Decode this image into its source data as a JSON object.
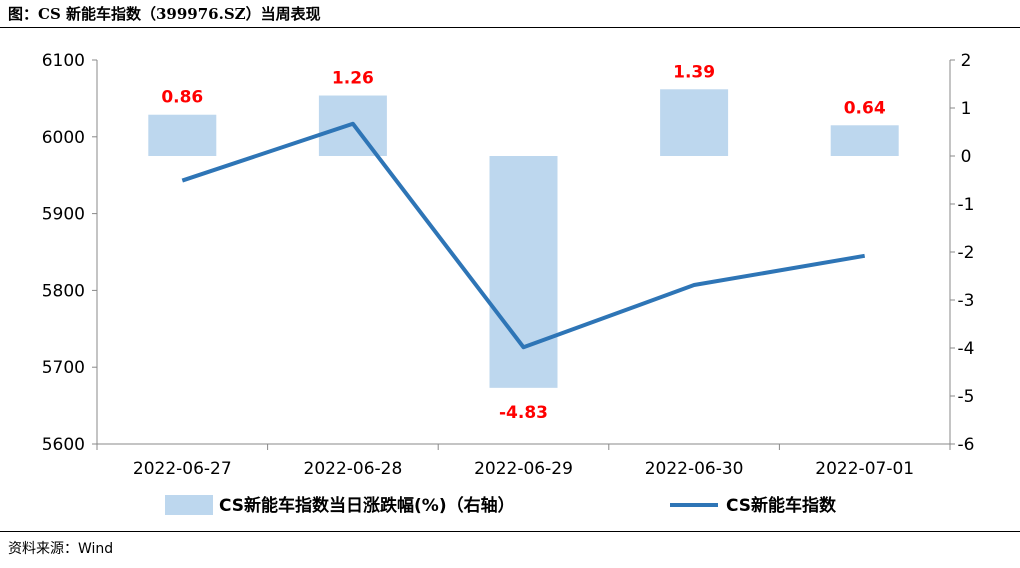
{
  "title": "图：CS 新能车指数（399976.SZ）当周表现",
  "source": "资料来源：Wind",
  "colors": {
    "bar": "#bdd7ee",
    "line": "#2e75b6",
    "label": "#ff0000"
  },
  "chart_data": {
    "type": "bar+line",
    "categories": [
      "2022-06-27",
      "2022-06-28",
      "2022-06-29",
      "2022-06-30",
      "2022-07-01"
    ],
    "bar_series": {
      "name": "CS新能车指数当日涨跌幅(%)（右轴）",
      "axis": "right",
      "values": [
        0.86,
        1.26,
        -4.83,
        1.39,
        0.64
      ],
      "labels": [
        "0.86",
        "1.26",
        "-4.83",
        "1.39",
        "0.64"
      ]
    },
    "line_series": {
      "name": "CS新能车指数",
      "axis": "left",
      "values": [
        5943,
        6017,
        5726,
        5807,
        5845
      ]
    },
    "left_axis": {
      "min": 5600,
      "max": 6100,
      "ticks": [
        "6100",
        "6000",
        "5900",
        "5800",
        "5700",
        "5600"
      ]
    },
    "right_axis": {
      "min": -6,
      "max": 2,
      "ticks": [
        "2",
        "1",
        "0",
        "-1",
        "-2",
        "-3",
        "-4",
        "-5",
        "-6"
      ]
    },
    "grid": false,
    "legend_position": "bottom"
  }
}
